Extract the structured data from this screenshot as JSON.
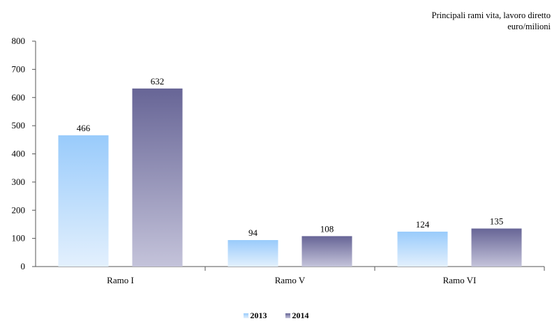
{
  "chart_data": {
    "type": "bar",
    "title": "Principali rami vita, lavoro diretto",
    "subtitle": "euro/milioni",
    "categories": [
      "Ramo I",
      "Ramo V",
      "Ramo VI"
    ],
    "series": [
      {
        "name": "2013",
        "values": [
          466,
          94,
          124
        ],
        "color_top": "#99cbfb",
        "color_bottom": "#e3f0fd"
      },
      {
        "name": "2014",
        "values": [
          632,
          108,
          135
        ],
        "color_top": "#676596",
        "color_bottom": "#c4c3da"
      }
    ],
    "ylim": [
      0,
      800
    ],
    "yticks": [
      "0",
      "100",
      "200",
      "300",
      "400",
      "500",
      "600",
      "700",
      "800"
    ],
    "grid": false,
    "legend_position": "bottom"
  }
}
